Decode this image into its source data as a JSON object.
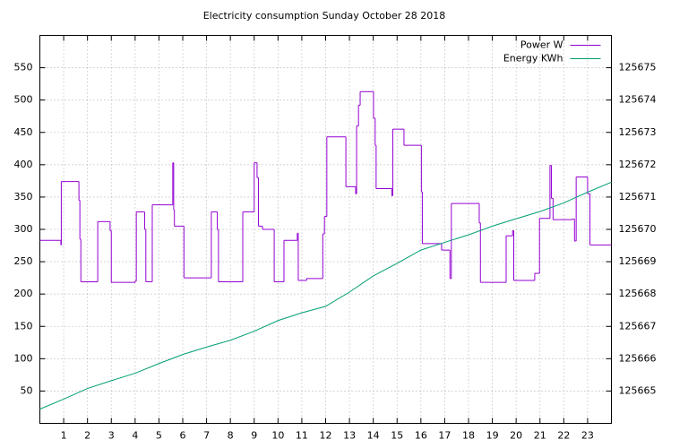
{
  "chart_data": {
    "type": "line",
    "title": "Electricity consumption Sunday October 28 2018",
    "xlim": [
      0,
      24
    ],
    "xticks": [
      1,
      2,
      3,
      4,
      5,
      6,
      7,
      8,
      9,
      10,
      11,
      12,
      13,
      14,
      15,
      16,
      17,
      18,
      19,
      20,
      21,
      22,
      23
    ],
    "ylim": [
      0,
      600
    ],
    "yticks": [
      50,
      100,
      150,
      200,
      250,
      300,
      350,
      400,
      450,
      500,
      550
    ],
    "y2lim": [
      125664,
      125676
    ],
    "y2ticks": [
      125665,
      125666,
      125667,
      125668,
      125669,
      125670,
      125671,
      125672,
      125673,
      125674,
      125675
    ],
    "grid": true,
    "legend": "top right",
    "series": [
      {
        "name": "Power W",
        "color": "#9400d3",
        "step": true,
        "x": [
          0,
          0.88,
          0.9,
          1.64,
          1.68,
          1.72,
          2.43,
          2.95,
          3.0,
          4.0,
          4.05,
          4.4,
          4.45,
          4.72,
          5.58,
          5.62,
          5.65,
          6.05,
          7.2,
          7.45,
          7.5,
          8.52,
          9.0,
          9.12,
          9.18,
          9.35,
          9.84,
          10.25,
          10.81,
          10.85,
          11.2,
          11.88,
          11.95,
          12.05,
          12.85,
          13.26,
          13.3,
          13.38,
          13.45,
          14.01,
          14.08,
          14.12,
          14.78,
          14.82,
          15.29,
          16.02,
          16.06,
          16.87,
          17.22,
          17.28,
          18.45,
          18.5,
          19.58,
          19.85,
          19.9,
          20.78,
          20.98,
          21.42,
          21.48,
          21.55,
          22.35,
          22.45,
          22.52,
          23.0,
          23.1
        ],
        "values": [
          283,
          276,
          374,
          345,
          285,
          219,
          312,
          298,
          218,
          220,
          327,
          300,
          219,
          338,
          403,
          330,
          305,
          225,
          327,
          300,
          219,
          327,
          403,
          380,
          305,
          300,
          219,
          283,
          294,
          221,
          224,
          293,
          320,
          443,
          366,
          355,
          460,
          492,
          513,
          472,
          430,
          363,
          352,
          455,
          430,
          358,
          278,
          268,
          224,
          340,
          310,
          218,
          290,
          298,
          221,
          232,
          317,
          399,
          348,
          315,
          316,
          282,
          381,
          355,
          276
        ]
      },
      {
        "name": "Energy KWh",
        "color": "#009e73",
        "axis": "y2",
        "x": [
          0,
          1,
          2,
          3,
          4,
          5,
          6,
          7,
          8,
          9,
          10,
          11,
          12,
          13,
          14,
          15,
          16,
          17,
          18,
          19,
          20,
          21,
          22,
          23,
          24
        ],
        "values": [
          125664.44,
          125664.75,
          125665.08,
          125665.32,
          125665.55,
          125665.85,
          125666.13,
          125666.36,
          125666.57,
          125666.85,
          125667.18,
          125667.42,
          125667.62,
          125668.06,
          125668.56,
          125668.95,
          125669.36,
          125669.6,
          125669.83,
          125670.1,
          125670.33,
          125670.55,
          125670.82,
          125671.15,
          125671.46
        ]
      }
    ]
  }
}
